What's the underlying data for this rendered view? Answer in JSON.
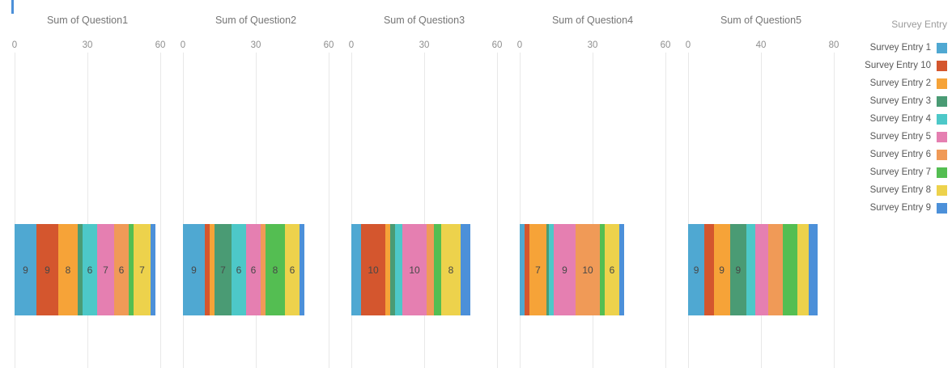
{
  "legend": {
    "title": "Survey Entry",
    "items": [
      {
        "label": "Survey Entry 1",
        "color": "#4FA8D2"
      },
      {
        "label": "Survey Entry 10",
        "color": "#D4562E"
      },
      {
        "label": "Survey Entry 2",
        "color": "#F6A338"
      },
      {
        "label": "Survey Entry 3",
        "color": "#4A9B74"
      },
      {
        "label": "Survey Entry 4",
        "color": "#4DC8C8"
      },
      {
        "label": "Survey Entry 5",
        "color": "#E57FB1"
      },
      {
        "label": "Survey Entry 6",
        "color": "#F09A57"
      },
      {
        "label": "Survey Entry 7",
        "color": "#54BE52"
      },
      {
        "label": "Survey Entry 8",
        "color": "#EDD24C"
      },
      {
        "label": "Survey Entry 9",
        "color": "#4C90D9"
      }
    ]
  },
  "chart_data": {
    "type": "bar",
    "subtype": "horizontal-stacked",
    "legend_title": "Survey Entry",
    "legend_position": "right",
    "grid": true,
    "series_order": [
      "Survey Entry 1",
      "Survey Entry 10",
      "Survey Entry 2",
      "Survey Entry 3",
      "Survey Entry 4",
      "Survey Entry 5",
      "Survey Entry 6",
      "Survey Entry 7",
      "Survey Entry 8",
      "Survey Entry 9"
    ],
    "panels": [
      {
        "title": "Sum of Question1",
        "axis": {
          "min": 0,
          "max": 60,
          "ticks": [
            0,
            30,
            60
          ]
        },
        "segments": [
          {
            "entry": "Survey Entry 1",
            "value": 9,
            "label": "9"
          },
          {
            "entry": "Survey Entry 10",
            "value": 9,
            "label": "9"
          },
          {
            "entry": "Survey Entry 2",
            "value": 8,
            "label": "8"
          },
          {
            "entry": "Survey Entry 3",
            "value": 2
          },
          {
            "entry": "Survey Entry 4",
            "value": 6,
            "label": "6"
          },
          {
            "entry": "Survey Entry 5",
            "value": 7,
            "label": "7"
          },
          {
            "entry": "Survey Entry 6",
            "value": 6,
            "label": "6"
          },
          {
            "entry": "Survey Entry 7",
            "value": 2
          },
          {
            "entry": "Survey Entry 8",
            "value": 7,
            "label": "7"
          },
          {
            "entry": "Survey Entry 9",
            "value": 2
          }
        ]
      },
      {
        "title": "Sum of Question2",
        "axis": {
          "min": 0,
          "max": 60,
          "ticks": [
            0,
            30,
            60
          ]
        },
        "segments": [
          {
            "entry": "Survey Entry 1",
            "value": 9,
            "label": "9"
          },
          {
            "entry": "Survey Entry 10",
            "value": 2
          },
          {
            "entry": "Survey Entry 2",
            "value": 2
          },
          {
            "entry": "Survey Entry 3",
            "value": 7,
            "label": "7"
          },
          {
            "entry": "Survey Entry 4",
            "value": 6,
            "label": "6"
          },
          {
            "entry": "Survey Entry 5",
            "value": 6,
            "label": "6"
          },
          {
            "entry": "Survey Entry 6",
            "value": 2
          },
          {
            "entry": "Survey Entry 7",
            "value": 8,
            "label": "8"
          },
          {
            "entry": "Survey Entry 8",
            "value": 6,
            "label": "6"
          },
          {
            "entry": "Survey Entry 9",
            "value": 2
          }
        ]
      },
      {
        "title": "Sum of Question3",
        "axis": {
          "min": 0,
          "max": 60,
          "ticks": [
            0,
            30,
            60
          ]
        },
        "segments": [
          {
            "entry": "Survey Entry 1",
            "value": 4
          },
          {
            "entry": "Survey Entry 10",
            "value": 10,
            "label": "10"
          },
          {
            "entry": "Survey Entry 2",
            "value": 2
          },
          {
            "entry": "Survey Entry 3",
            "value": 2
          },
          {
            "entry": "Survey Entry 4",
            "value": 3
          },
          {
            "entry": "Survey Entry 5",
            "value": 10,
            "label": "10"
          },
          {
            "entry": "Survey Entry 6",
            "value": 3
          },
          {
            "entry": "Survey Entry 7",
            "value": 3
          },
          {
            "entry": "Survey Entry 8",
            "value": 8,
            "label": "8"
          },
          {
            "entry": "Survey Entry 9",
            "value": 4
          }
        ]
      },
      {
        "title": "Sum of Question4",
        "axis": {
          "min": 0,
          "max": 60,
          "ticks": [
            0,
            30,
            60
          ]
        },
        "segments": [
          {
            "entry": "Survey Entry 1",
            "value": 2
          },
          {
            "entry": "Survey Entry 10",
            "value": 2
          },
          {
            "entry": "Survey Entry 2",
            "value": 7,
            "label": "7"
          },
          {
            "entry": "Survey Entry 3",
            "value": 1
          },
          {
            "entry": "Survey Entry 4",
            "value": 2
          },
          {
            "entry": "Survey Entry 5",
            "value": 9,
            "label": "9"
          },
          {
            "entry": "Survey Entry 6",
            "value": 10,
            "label": "10"
          },
          {
            "entry": "Survey Entry 7",
            "value": 2
          },
          {
            "entry": "Survey Entry 8",
            "value": 6,
            "label": "6"
          },
          {
            "entry": "Survey Entry 9",
            "value": 2
          }
        ]
      },
      {
        "title": "Sum of Question5",
        "axis": {
          "min": 0,
          "max": 80,
          "ticks": [
            0,
            40,
            80
          ]
        },
        "segments": [
          {
            "entry": "Survey Entry 1",
            "value": 9,
            "label": "9"
          },
          {
            "entry": "Survey Entry 10",
            "value": 5
          },
          {
            "entry": "Survey Entry 2",
            "value": 9,
            "label": "9"
          },
          {
            "entry": "Survey Entry 3",
            "value": 9,
            "label": "9"
          },
          {
            "entry": "Survey Entry 4",
            "value": 5
          },
          {
            "entry": "Survey Entry 5",
            "value": 7
          },
          {
            "entry": "Survey Entry 6",
            "value": 8
          },
          {
            "entry": "Survey Entry 7",
            "value": 8
          },
          {
            "entry": "Survey Entry 8",
            "value": 6
          },
          {
            "entry": "Survey Entry 9",
            "value": 5
          }
        ]
      }
    ]
  }
}
